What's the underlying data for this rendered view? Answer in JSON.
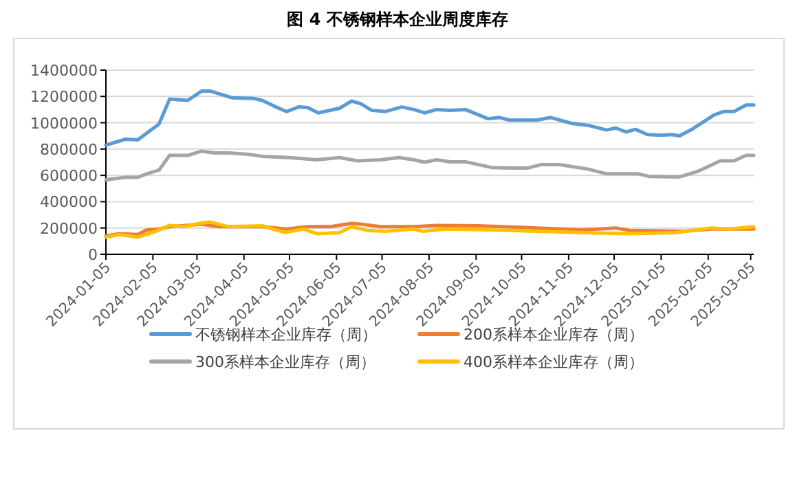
{
  "chart_data": {
    "type": "line",
    "title": "图 4 不锈钢样本企业周度库存",
    "xlim": [
      "2024-01-05",
      "2025-03-07"
    ],
    "xticks": [
      "2024-01-05",
      "2024-02-05",
      "2024-03-05",
      "2024-04-05",
      "2024-05-05",
      "2024-06-05",
      "2024-07-05",
      "2024-08-05",
      "2024-09-05",
      "2024-10-05",
      "2024-11-05",
      "2024-12-05",
      "2025-01-05",
      "2025-02-05",
      "2025-03-05"
    ],
    "ylim": [
      0,
      1400000
    ],
    "yticks": [
      0,
      200000,
      400000,
      600000,
      800000,
      1000000,
      1200000,
      1400000
    ],
    "grid": "y",
    "legend": "bottom",
    "marker": "none",
    "line_style": "solid",
    "series": [
      {
        "name": "不锈钢样本企业库存（周）",
        "color": "#5b9bd5",
        "x": [
          "2024-01-05",
          "2024-01-18",
          "2024-01-26",
          "2024-02-09",
          "2024-02-16",
          "2024-02-28",
          "2024-03-08",
          "2024-03-14",
          "2024-03-28",
          "2024-04-11",
          "2024-04-17",
          "2024-04-26",
          "2024-05-03",
          "2024-05-11",
          "2024-05-17",
          "2024-05-24",
          "2024-06-07",
          "2024-06-15",
          "2024-06-21",
          "2024-06-28",
          "2024-07-07",
          "2024-07-18",
          "2024-07-26",
          "2024-08-02",
          "2024-08-10",
          "2024-08-19",
          "2024-08-29",
          "2024-09-13",
          "2024-09-20",
          "2024-09-27",
          "2024-10-15",
          "2024-10-24",
          "2024-11-07",
          "2024-11-18",
          "2024-11-30",
          "2024-12-06",
          "2024-12-13",
          "2024-12-19",
          "2024-12-27",
          "2025-01-05",
          "2025-01-12",
          "2025-01-17",
          "2025-01-26",
          "2025-02-09",
          "2025-02-15",
          "2025-02-22",
          "2025-03-02",
          "2025-03-07"
        ],
        "values": [
          830000,
          875000,
          870000,
          990000,
          1180000,
          1170000,
          1240000,
          1240000,
          1190000,
          1185000,
          1170000,
          1120000,
          1085000,
          1120000,
          1115000,
          1075000,
          1110000,
          1165000,
          1145000,
          1095000,
          1085000,
          1120000,
          1100000,
          1075000,
          1100000,
          1095000,
          1100000,
          1030000,
          1040000,
          1020000,
          1020000,
          1040000,
          995000,
          980000,
          945000,
          960000,
          930000,
          950000,
          910000,
          905000,
          910000,
          900000,
          955000,
          1060000,
          1085000,
          1085000,
          1135000,
          1135000
        ]
      },
      {
        "name": "200系样本企业库存（周）",
        "color": "#ed7d31",
        "x": [
          "2024-01-05",
          "2024-01-14",
          "2024-01-26",
          "2024-02-01",
          "2024-02-09",
          "2024-02-16",
          "2024-03-08",
          "2024-03-20",
          "2024-04-17",
          "2024-05-03",
          "2024-05-17",
          "2024-06-01",
          "2024-06-15",
          "2024-06-22",
          "2024-07-04",
          "2024-07-26",
          "2024-08-10",
          "2024-09-06",
          "2024-10-15",
          "2024-11-15",
          "2024-12-06",
          "2024-12-15",
          "2025-01-08",
          "2025-01-20",
          "2025-02-07",
          "2025-03-07"
        ],
        "values": [
          140000,
          157000,
          150000,
          185000,
          192000,
          210000,
          228000,
          210000,
          210000,
          192000,
          210000,
          210000,
          235000,
          228000,
          210000,
          210000,
          220000,
          217000,
          200000,
          185000,
          200000,
          182000,
          178000,
          175000,
          192000,
          192000
        ]
      },
      {
        "name": "300系样本企业库存（周）",
        "color": "#a5a5a5",
        "x": [
          "2024-01-05",
          "2024-01-18",
          "2024-01-26",
          "2024-02-01",
          "2024-02-09",
          "2024-02-16",
          "2024-02-28",
          "2024-03-08",
          "2024-03-17",
          "2024-03-26",
          "2024-04-08",
          "2024-04-17",
          "2024-05-05",
          "2024-05-23",
          "2024-06-07",
          "2024-06-19",
          "2024-07-04",
          "2024-07-16",
          "2024-07-26",
          "2024-08-02",
          "2024-08-10",
          "2024-08-19",
          "2024-08-29",
          "2024-09-15",
          "2024-09-27",
          "2024-10-09",
          "2024-10-18",
          "2024-10-30",
          "2024-11-18",
          "2024-11-30",
          "2024-12-21",
          "2024-12-28",
          "2025-01-17",
          "2025-01-29",
          "2025-02-13",
          "2025-02-22",
          "2025-03-02",
          "2025-03-07"
        ],
        "values": [
          567000,
          585000,
          585000,
          612000,
          640000,
          752000,
          752000,
          784000,
          770000,
          770000,
          760000,
          745000,
          735000,
          718000,
          735000,
          710000,
          718000,
          735000,
          718000,
          700000,
          718000,
          703000,
          703000,
          660000,
          655000,
          655000,
          682000,
          682000,
          647000,
          612000,
          612000,
          592000,
          588000,
          630000,
          710000,
          710000,
          752000,
          752000
        ]
      },
      {
        "name": "400系样本企业库存（周）",
        "color": "#ffc000",
        "x": [
          "2024-01-05",
          "2024-01-14",
          "2024-01-26",
          "2024-02-07",
          "2024-02-16",
          "2024-02-25",
          "2024-03-08",
          "2024-03-14",
          "2024-03-26",
          "2024-04-17",
          "2024-05-02",
          "2024-05-14",
          "2024-05-23",
          "2024-06-07",
          "2024-06-15",
          "2024-06-25",
          "2024-07-07",
          "2024-07-26",
          "2024-08-01",
          "2024-08-16",
          "2024-09-15",
          "2024-10-24",
          "2024-11-15",
          "2024-12-15",
          "2025-01-14",
          "2025-02-07",
          "2025-02-19",
          "2025-03-07"
        ],
        "values": [
          130000,
          150000,
          130000,
          175000,
          220000,
          210000,
          238000,
          245000,
          210000,
          217000,
          165000,
          192000,
          157000,
          165000,
          210000,
          182000,
          175000,
          192000,
          175000,
          192000,
          185000,
          172000,
          165000,
          157000,
          165000,
          200000,
          192000,
          210000
        ]
      }
    ]
  }
}
